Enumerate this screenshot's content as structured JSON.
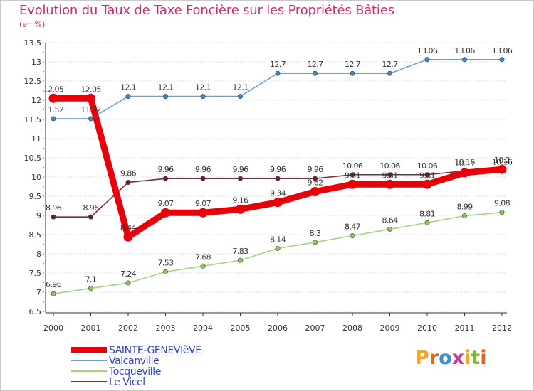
{
  "title": "Evolution du Taux de Taxe Foncière sur les Propriétés Bâties",
  "subtitle": "(en %)",
  "logo": {
    "text": "Proxiti",
    "colors": [
      "#f5a623",
      "#e8641b",
      "#3b8fd4",
      "#c83a8e",
      "#f5a623",
      "#7ab83c",
      "#e8641b"
    ]
  },
  "chart_data": {
    "type": "line",
    "title": "Evolution du Taux de Taxe Foncière sur les Propriétés Bâties",
    "ylabel": "(en %)",
    "xlabel": "",
    "ylim": [
      6.5,
      13.5
    ],
    "yticks": [
      "6.5",
      "7",
      "7.5",
      "8",
      "8.5",
      "9",
      "9.5",
      "10",
      "10.5",
      "11",
      "11.5",
      "12",
      "12.5",
      "13",
      "13.5"
    ],
    "categories": [
      "2000",
      "2001",
      "2002",
      "2003",
      "2004",
      "2005",
      "2006",
      "2007",
      "2008",
      "2009",
      "2010",
      "2011",
      "2012"
    ],
    "series": [
      {
        "name": "Valcanville",
        "color": "#6aa3d0",
        "marker": "#3d87c4",
        "values": [
          11.52,
          11.52,
          12.1,
          12.1,
          12.1,
          12.1,
          12.7,
          12.7,
          12.7,
          12.7,
          13.06,
          13.06,
          13.06
        ],
        "labels": [
          "11.52",
          "11.52",
          "12.1",
          "12.1",
          "12.1",
          "12.1",
          "12.7",
          "12.7",
          "12.7",
          "12.7",
          "13.06",
          "13.06",
          "13.06"
        ]
      },
      {
        "name": "Le Vicel",
        "color": "#7a2e34",
        "marker": "#6b1f26",
        "values": [
          8.96,
          8.96,
          9.86,
          9.96,
          9.96,
          9.96,
          9.96,
          9.96,
          10.06,
          10.06,
          10.06,
          10.16,
          10.16
        ],
        "labels": [
          "8.96",
          "8.96",
          "9.86",
          "9.96",
          "9.96",
          "9.96",
          "9.96",
          "9.96",
          "10.06",
          "10.06",
          "10.06",
          "10.16",
          "10.16"
        ]
      },
      {
        "name": "Tocqueville",
        "color": "#a3d67c",
        "marker": "#8cc85c",
        "values": [
          6.96,
          7.1,
          7.24,
          7.53,
          7.68,
          7.83,
          8.14,
          8.3,
          8.47,
          8.64,
          8.81,
          8.99,
          9.08
        ],
        "labels": [
          "6.96",
          "7.1",
          "7.24",
          "7.53",
          "7.68",
          "7.83",
          "8.14",
          "8.3",
          "8.47",
          "8.64",
          "8.81",
          "8.99",
          "9.08"
        ]
      },
      {
        "name": "SAINTE-GENEVIèVE",
        "color": "#e8000b",
        "marker": "#e8000b",
        "bold": true,
        "values": [
          12.05,
          12.05,
          8.44,
          9.07,
          9.07,
          9.16,
          9.34,
          9.62,
          9.81,
          9.81,
          9.81,
          10.11,
          10.2
        ],
        "labels": [
          "12.05",
          "12.05",
          "8.44",
          "9.07",
          "9.07",
          "9.16",
          "9.34",
          "9.62",
          "9.81",
          "9.81",
          "9.81",
          "10.11",
          "10.2"
        ]
      }
    ],
    "legend": {
      "position": "bottom-left",
      "entries": [
        {
          "label": "SAINTE-GENEVIèVE",
          "color": "#e8000b",
          "bold": true
        },
        {
          "label": "Valcanville",
          "color": "#6aa3d0"
        },
        {
          "label": "Tocqueville",
          "color": "#a3d67c"
        },
        {
          "label": "Le Vicel",
          "color": "#7a2e34"
        }
      ]
    }
  }
}
